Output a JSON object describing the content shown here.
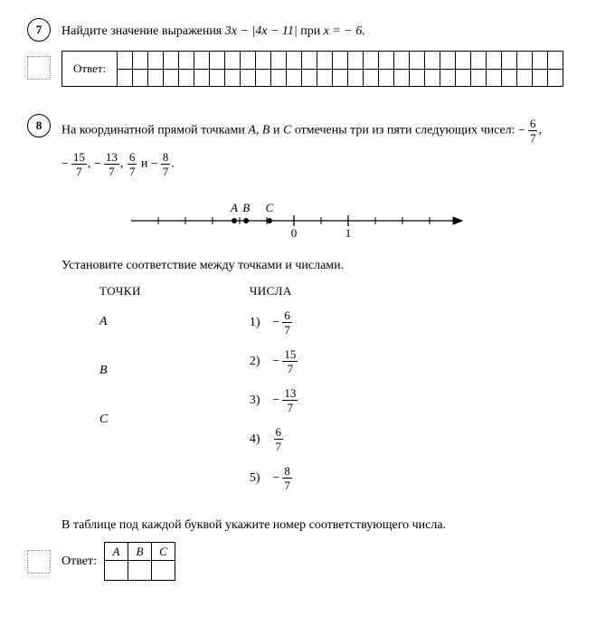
{
  "p7": {
    "number": "7",
    "text_before": "Найдите значение выражения  ",
    "expr": "3x − |4x − 11|",
    "text_mid": "  при  ",
    "cond": "x = − 6.",
    "answer_label": "Ответ:",
    "grid_cols": 29
  },
  "p8": {
    "number": "8",
    "intro_before": "На координатной прямой точками  ",
    "A": "A",
    "B": "B",
    "C": "C",
    "intro_mid1": ",  ",
    "intro_mid2": "  и  ",
    "intro_after": "  отмечены три из пяти следующих чисел:   ",
    "fracs": [
      {
        "sign": "−",
        "n": "6",
        "d": "7"
      },
      {
        "sign": "−",
        "n": "15",
        "d": "7"
      },
      {
        "sign": "−",
        "n": "13",
        "d": "7"
      },
      {
        "sign": "",
        "n": "6",
        "d": "7"
      },
      {
        "sign": "−",
        "n": "8",
        "d": "7"
      }
    ],
    "sep_comma": ",  ",
    "sep_and": "  и  ",
    "sep_period": ".",
    "line": {
      "ticks": [
        0,
        1
      ],
      "points": [
        {
          "label": "A",
          "x": -1.1
        },
        {
          "label": "B",
          "x": -0.88
        },
        {
          "label": "C",
          "x": -0.45
        }
      ]
    },
    "match_text": "Установите соответствие между точками и числами.",
    "col_points_title": "ТОЧКИ",
    "col_numbers_title": "ЧИСЛА",
    "points_list": [
      "A",
      "B",
      "C"
    ],
    "numbers_list": [
      {
        "n": "1)",
        "sign": "−",
        "num": "6",
        "den": "7"
      },
      {
        "n": "2)",
        "sign": "−",
        "num": "15",
        "den": "7"
      },
      {
        "n": "3)",
        "sign": "−",
        "num": "13",
        "den": "7"
      },
      {
        "n": "4)",
        "sign": "",
        "num": "6",
        "den": "7"
      },
      {
        "n": "5)",
        "sign": "−",
        "num": "8",
        "den": "7"
      }
    ],
    "table_instruction": "В таблице под каждой буквой укажите номер соответствующего числа.",
    "answer_label": "Ответ:",
    "table_headers": [
      "A",
      "B",
      "C"
    ]
  }
}
